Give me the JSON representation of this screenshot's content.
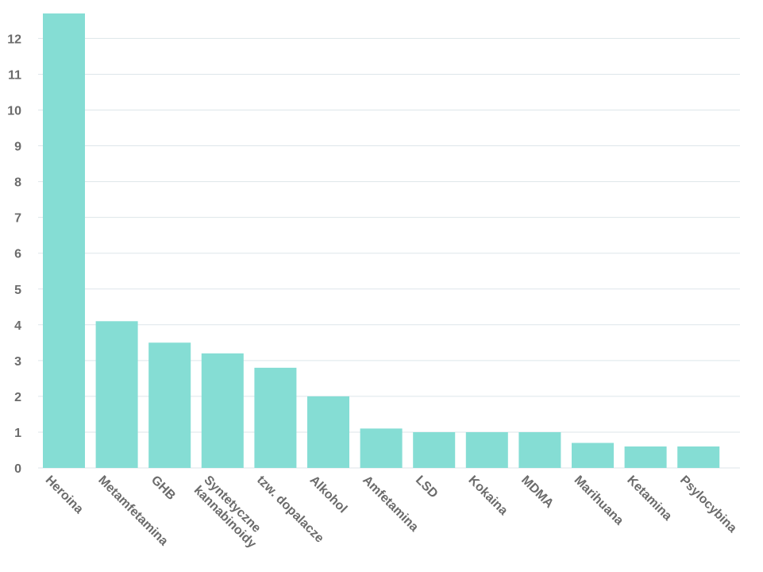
{
  "chart_data": {
    "type": "bar",
    "categories": [
      "Heroina",
      "Metamfetamina",
      "GHB",
      "Syntetyczne\nkannabinoidy",
      "tzw. dopalacze",
      "Alkohol",
      "Amfetamina",
      "LSD",
      "Kokaina",
      "MDMA",
      "Marihuana",
      "Ketamina",
      "Psylocybina"
    ],
    "values": [
      12.7,
      4.1,
      3.5,
      3.2,
      2.8,
      2.0,
      1.1,
      1.0,
      1.0,
      1.0,
      0.7,
      0.6,
      0.6
    ],
    "title": "",
    "xlabel": "",
    "ylabel": "",
    "ylim": [
      0,
      12.7
    ],
    "yticks": [
      0,
      1,
      2,
      3,
      4,
      5,
      6,
      7,
      8,
      9,
      10,
      11,
      12
    ],
    "grid": true,
    "legend": "none"
  },
  "colors": {
    "bar": "#85ddd4",
    "grid": "#dde6ea",
    "text": "#6b6b6b"
  }
}
